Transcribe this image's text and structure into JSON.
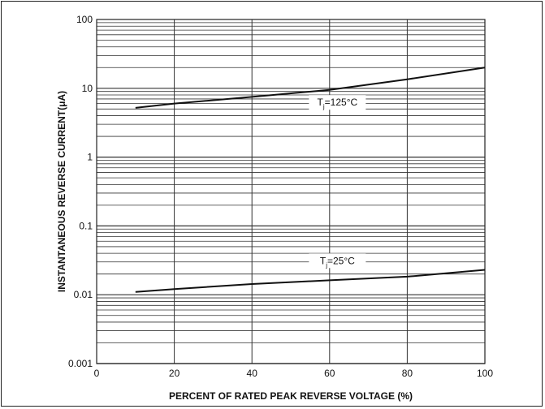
{
  "chart_data": {
    "type": "line",
    "title": "",
    "xlabel": "PERCENT OF RATED PEAK REVERSE VOLTAGE (%)",
    "ylabel": "INSTANTANEOUS REVERSE CURRENT(μA)",
    "x_scale": "linear",
    "y_scale": "log",
    "xlim": [
      0,
      100
    ],
    "ylim": [
      0.001,
      100
    ],
    "x_ticks": [
      "0",
      "20",
      "40",
      "60",
      "80",
      "100"
    ],
    "y_ticks": [
      "0.001",
      "0.01",
      "0.1",
      "1",
      "10",
      "100"
    ],
    "grid": true,
    "series": [
      {
        "name": "TJ=125°C",
        "x": [
          10,
          20,
          40,
          60,
          80,
          100
        ],
        "y": [
          5.2,
          6.0,
          7.5,
          9.5,
          13.5,
          20
        ]
      },
      {
        "name": "TJ=25°C",
        "x": [
          10,
          20,
          40,
          60,
          80,
          100
        ],
        "y": [
          0.011,
          0.0121,
          0.0143,
          0.0162,
          0.0183,
          0.023
        ]
      }
    ],
    "annotations": [
      {
        "series": 0,
        "prefix": "T",
        "sub": "j",
        "suffix": "=125°C"
      },
      {
        "series": 1,
        "prefix": "T",
        "sub": "j",
        "suffix": "=25°C"
      }
    ]
  },
  "colors": {
    "line": "#111111",
    "grid": "#333333",
    "frame": "#222222"
  }
}
